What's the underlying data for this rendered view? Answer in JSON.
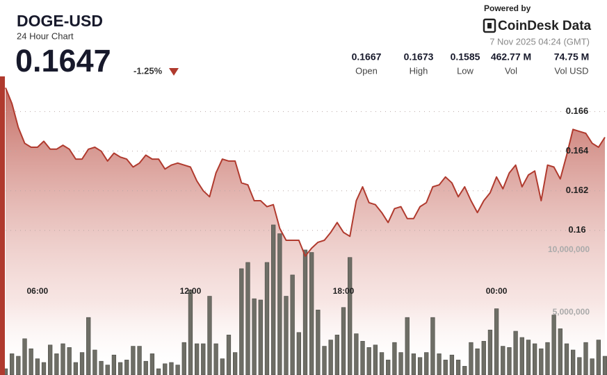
{
  "header": {
    "title": "DOGE-USD",
    "subtitle": "24 Hour Chart",
    "price": "0.1647",
    "change": "-1.25%",
    "powered": "Powered by",
    "brand": "CoinDesk Data",
    "timestamp": "7 Nov 2025 04:24 (GMT)",
    "stats": [
      {
        "value": "0.1667",
        "label": "Open"
      },
      {
        "value": "0.1673",
        "label": "High"
      },
      {
        "value": "0.1585",
        "label": "Low"
      },
      {
        "value": "462.77 M",
        "label": "Vol"
      },
      {
        "value": "74.75 M",
        "label": "Vol USD"
      }
    ]
  },
  "chart_data": {
    "type": "line",
    "xlim": [
      0,
      94
    ],
    "xticks": [
      {
        "value": 5,
        "label": "06:00"
      },
      {
        "value": 29,
        "label": "12:00"
      },
      {
        "value": 53,
        "label": "18:00"
      },
      {
        "value": 77,
        "label": "00:00"
      }
    ],
    "ylim": [
      0.1527,
      0.1676
    ],
    "yticks": [
      0.16,
      0.162,
      0.164,
      0.166
    ],
    "y2lim": [
      0,
      23600000
    ],
    "y2ticks": [
      {
        "value": 5000000,
        "label": "5,000,000"
      },
      {
        "value": 10000000,
        "label": "10,000,000"
      }
    ],
    "grid": true,
    "series": [
      {
        "type": "line",
        "color": "#b03a2e",
        "values": [
          0.1672,
          0.1664,
          0.1652,
          0.1644,
          0.1642,
          0.1642,
          0.1645,
          0.1641,
          0.1641,
          0.1643,
          0.1641,
          0.1636,
          0.1636,
          0.1641,
          0.1642,
          0.164,
          0.1635,
          0.1639,
          0.1637,
          0.1636,
          0.1632,
          0.1634,
          0.1638,
          0.1636,
          0.1636,
          0.1631,
          0.1633,
          0.1634,
          0.1633,
          0.1632,
          0.1625,
          0.162,
          0.1617,
          0.1629,
          0.1636,
          0.1635,
          0.1635,
          0.1624,
          0.1623,
          0.1615,
          0.1615,
          0.1612,
          0.1613,
          0.1601,
          0.1595,
          0.1595,
          0.1595,
          0.1587,
          0.1591,
          0.1594,
          0.1595,
          0.1599,
          0.1604,
          0.1599,
          0.1597,
          0.1615,
          0.1622,
          0.1614,
          0.1613,
          0.1609,
          0.1604,
          0.1611,
          0.1612,
          0.1606,
          0.1606,
          0.1612,
          0.1614,
          0.1622,
          0.1623,
          0.1627,
          0.1624,
          0.1617,
          0.1622,
          0.1615,
          0.1609,
          0.1615,
          0.1619,
          0.1627,
          0.1621,
          0.1629,
          0.1633,
          0.1622,
          0.1628,
          0.163,
          0.1615,
          0.1633,
          0.1632,
          0.1626,
          0.1638,
          0.1651,
          0.165,
          0.1649,
          0.1644,
          0.1642,
          0.1647
        ]
      },
      {
        "type": "bar",
        "axis": "y2",
        "color": "#6e6e66",
        "values": [
          500000,
          1700000,
          1500000,
          2900000,
          2100000,
          1300000,
          1000000,
          2400000,
          1700000,
          2500000,
          2200000,
          1000000,
          1800000,
          4600000,
          2000000,
          1100000,
          800000,
          1600000,
          1000000,
          1200000,
          2300000,
          2300000,
          1100000,
          1700000,
          500000,
          900000,
          1000000,
          800000,
          2600000,
          6800000,
          2500000,
          2500000,
          6300000,
          2500000,
          1300000,
          3200000,
          1800000,
          8500000,
          9000000,
          6100000,
          6000000,
          9000000,
          12000000,
          11300000,
          6300000,
          8000000,
          3400000,
          10000000,
          9800000,
          5200000,
          2300000,
          2800000,
          3200000,
          5400000,
          9400000,
          3300000,
          2700000,
          2200000,
          2400000,
          1800000,
          1200000,
          2600000,
          1800000,
          4600000,
          1700000,
          1400000,
          1800000,
          4600000,
          1700000,
          1200000,
          1600000,
          1200000,
          700000,
          2600000,
          2100000,
          2700000,
          3600000,
          5300000,
          2300000,
          2200000,
          3500000,
          3000000,
          2800000,
          2500000,
          2100000,
          2600000,
          4800000,
          3700000,
          2500000,
          2000000,
          1400000,
          2600000,
          1300000,
          2800000,
          1500000
        ]
      }
    ]
  }
}
